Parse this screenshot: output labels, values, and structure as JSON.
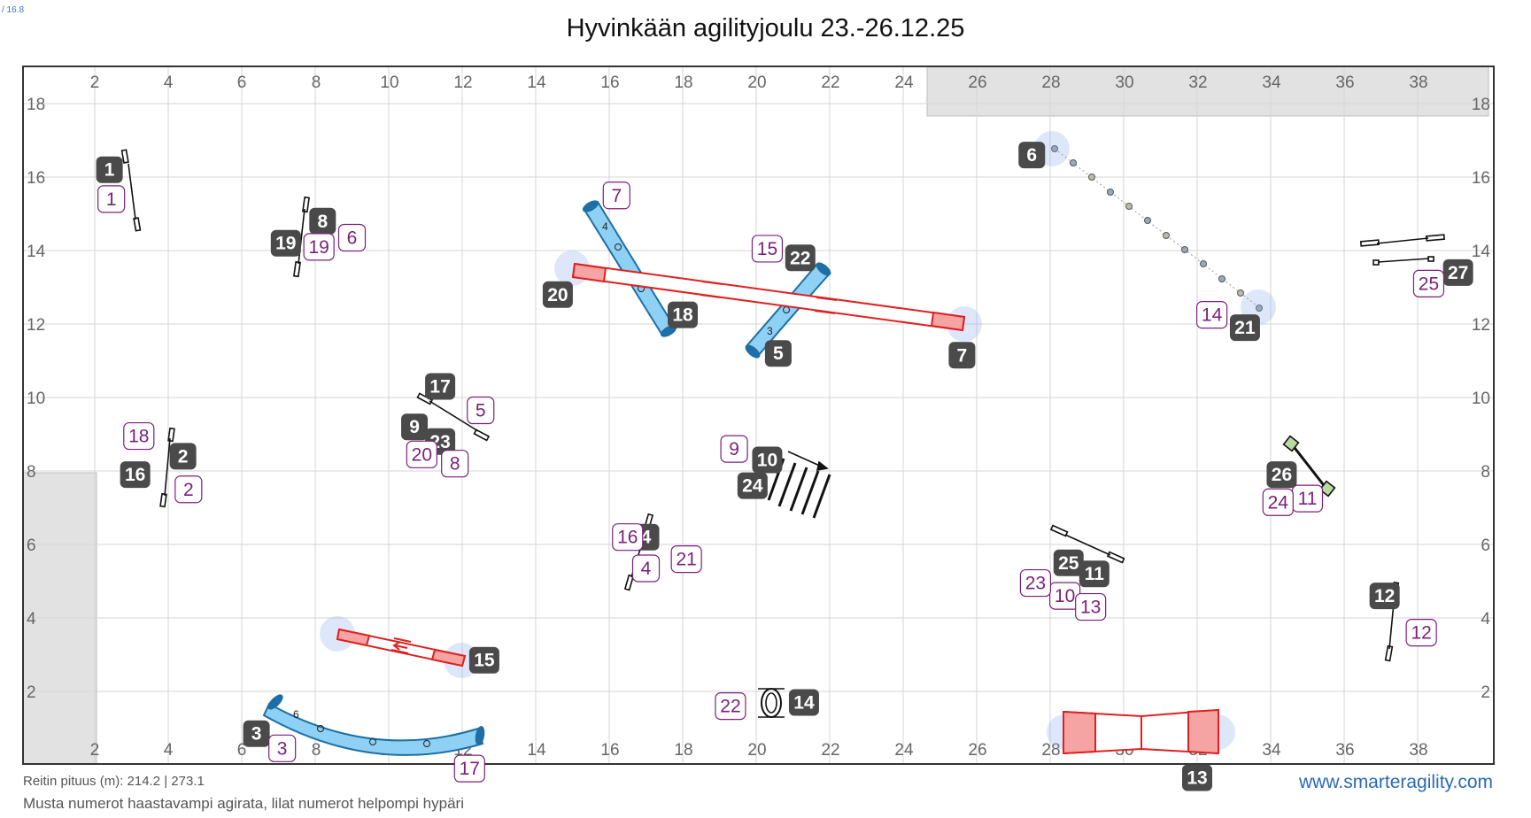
{
  "header": {
    "version": "/ 16.8",
    "title": "Hyvinkään agilityjoulu 23.-26.12.25"
  },
  "footer": {
    "course_length": "Reitin pituus (m): 214.2 | 273.1",
    "note": "Musta numerot haastavampi agirata, lilat numerot helpompi hypäri",
    "site": "www.smarteragility.com"
  },
  "colors": {
    "black_number": "#4a4a4a",
    "purple_number": "#7b1f7b",
    "tunnel": "#8fd0f5",
    "tunnel_stroke": "#1d6fa5",
    "contact": "#e02020",
    "grid": "#d6d6d6"
  },
  "field": {
    "x_ticks_top": [
      "2",
      "4",
      "6",
      "8",
      "10",
      "12",
      "14",
      "16",
      "18",
      "20",
      "22",
      "24",
      "26",
      "28",
      "30",
      "32",
      "34",
      "36",
      "38"
    ],
    "x_ticks_bottom": [
      "2",
      "4",
      "6",
      "8",
      "10",
      "12",
      "14",
      "16",
      "18",
      "20",
      "22",
      "24",
      "26",
      "28",
      "30",
      "32",
      "34",
      "36",
      "38"
    ],
    "y_ticks": [
      "2",
      "4",
      "6",
      "8",
      "10",
      "12",
      "14",
      "16",
      "18"
    ]
  },
  "black_numbers": [
    {
      "label": "1",
      "x": 2.4,
      "y": 16.2
    },
    {
      "label": "2",
      "x": 4.4,
      "y": 8.4
    },
    {
      "label": "3",
      "x": 6.4,
      "y": 0.85
    },
    {
      "label": "4",
      "x": 17.0,
      "y": 6.2
    },
    {
      "label": "5",
      "x": 20.6,
      "y": 11.2
    },
    {
      "label": "6",
      "x": 27.5,
      "y": 16.6
    },
    {
      "label": "7",
      "x": 25.6,
      "y": 11.15
    },
    {
      "label": "8",
      "x": 8.2,
      "y": 14.8
    },
    {
      "label": "9",
      "x": 10.7,
      "y": 9.2
    },
    {
      "label": "10",
      "x": 20.3,
      "y": 8.3
    },
    {
      "label": "11",
      "x": 29.2,
      "y": 5.2
    },
    {
      "label": "12",
      "x": 37.1,
      "y": 4.6
    },
    {
      "label": "13",
      "x": 32.0,
      "y": -0.35
    },
    {
      "label": "14",
      "x": 21.3,
      "y": 1.7
    },
    {
      "label": "15",
      "x": 12.6,
      "y": 2.85
    },
    {
      "label": "16",
      "x": 3.1,
      "y": 7.9
    },
    {
      "label": "17",
      "x": 11.4,
      "y": 10.3
    },
    {
      "label": "18",
      "x": 18.0,
      "y": 12.25
    },
    {
      "label": "19",
      "x": 7.2,
      "y": 14.2
    },
    {
      "label": "20",
      "x": 14.6,
      "y": 12.8
    },
    {
      "label": "21",
      "x": 33.3,
      "y": 11.9
    },
    {
      "label": "22",
      "x": 21.2,
      "y": 13.8
    },
    {
      "label": "23",
      "x": 11.4,
      "y": 8.8
    },
    {
      "label": "24",
      "x": 19.9,
      "y": 7.6
    },
    {
      "label": "25",
      "x": 28.5,
      "y": 5.5
    },
    {
      "label": "26",
      "x": 34.3,
      "y": 7.9
    },
    {
      "label": "27",
      "x": 39.1,
      "y": 13.4
    }
  ],
  "purple_numbers": [
    {
      "label": "1",
      "x": 2.45,
      "y": 15.4
    },
    {
      "label": "2",
      "x": 4.55,
      "y": 7.5
    },
    {
      "label": "3",
      "x": 7.1,
      "y": 0.45
    },
    {
      "label": "4",
      "x": 17.0,
      "y": 5.35
    },
    {
      "label": "5",
      "x": 12.5,
      "y": 9.65
    },
    {
      "label": "6",
      "x": 9.0,
      "y": 14.35
    },
    {
      "label": "7",
      "x": 16.2,
      "y": 15.5
    },
    {
      "label": "8",
      "x": 11.8,
      "y": 8.2
    },
    {
      "label": "9",
      "x": 19.4,
      "y": 8.6
    },
    {
      "label": "10",
      "x": 28.4,
      "y": 4.6
    },
    {
      "label": "11",
      "x": 35.0,
      "y": 7.25
    },
    {
      "label": "12",
      "x": 38.1,
      "y": 3.6
    },
    {
      "label": "13",
      "x": 29.1,
      "y": 4.3
    },
    {
      "label": "14",
      "x": 32.4,
      "y": 12.25
    },
    {
      "label": "15",
      "x": 20.3,
      "y": 14.05
    },
    {
      "label": "16",
      "x": 16.5,
      "y": 6.2
    },
    {
      "label": "17",
      "x": 12.2,
      "y": -0.1
    },
    {
      "label": "18",
      "x": 3.2,
      "y": 8.95
    },
    {
      "label": "19",
      "x": 8.1,
      "y": 14.1
    },
    {
      "label": "20",
      "x": 10.9,
      "y": 8.45
    },
    {
      "label": "21",
      "x": 18.1,
      "y": 5.6
    },
    {
      "label": "22",
      "x": 19.3,
      "y": 1.6
    },
    {
      "label": "23",
      "x": 27.6,
      "y": 4.95
    },
    {
      "label": "24",
      "x": 34.2,
      "y": 7.15
    },
    {
      "label": "25",
      "x": 38.3,
      "y": 13.1
    }
  ]
}
